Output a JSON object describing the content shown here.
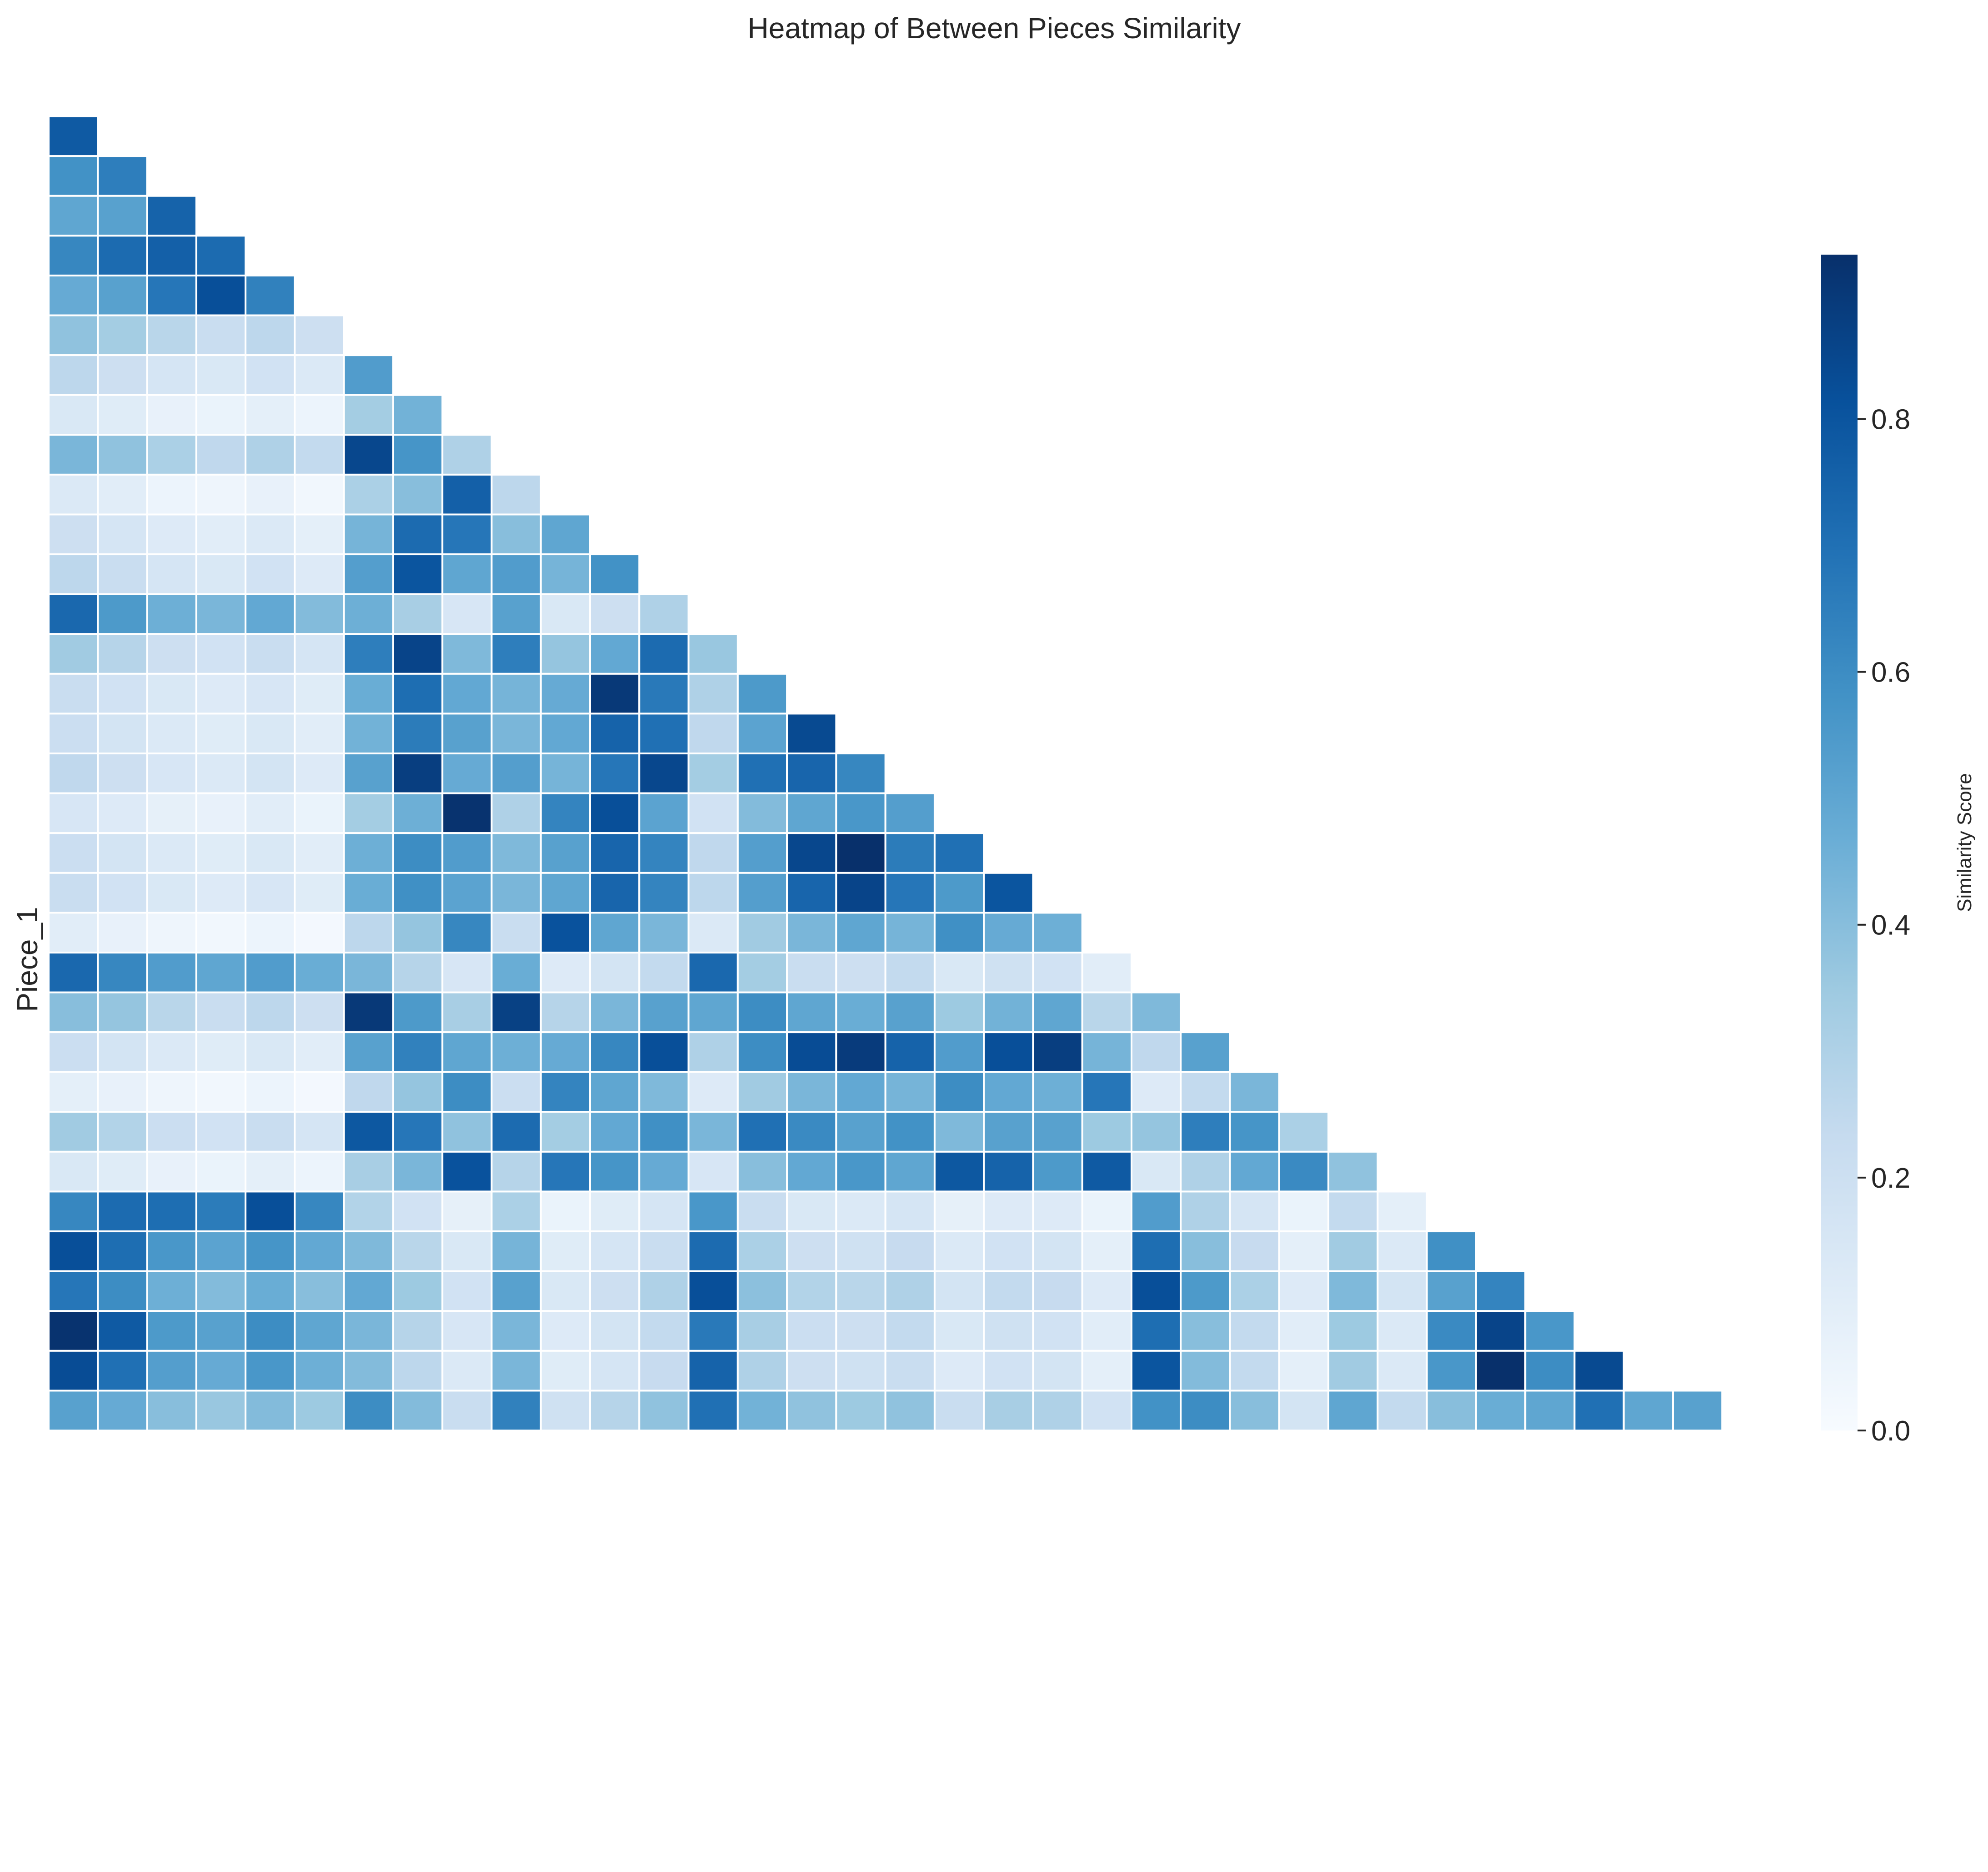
{
  "chart_data": {
    "type": "heatmap",
    "title": "Heatmap of Between Pieces Similarity",
    "ylabel": "Piece_1",
    "xlabel": "",
    "colorbar": {
      "label": "Similarity Score",
      "range": [
        0.0,
        0.93
      ],
      "ticks": [
        0.0,
        0.2,
        0.4,
        0.6,
        0.8
      ],
      "tick_labels": [
        "0.0",
        "0.2",
        "0.4",
        "0.6",
        "0.8"
      ],
      "colormap": "Blues"
    },
    "mask": "upper triangle including diagonal (row i shows columns 0..i-1)",
    "grid": false,
    "cell_border_color": "#ffffff",
    "rows": [
      [
        0.78
      ],
      [
        0.58,
        0.65
      ],
      [
        0.5,
        0.52,
        0.75
      ],
      [
        0.62,
        0.72,
        0.76,
        0.72
      ],
      [
        0.48,
        0.52,
        0.68,
        0.82,
        0.64
      ],
      [
        0.38,
        0.33,
        0.27,
        0.22,
        0.26,
        0.2
      ],
      [
        0.26,
        0.2,
        0.16,
        0.14,
        0.18,
        0.13,
        0.54
      ],
      [
        0.14,
        0.11,
        0.07,
        0.06,
        0.09,
        0.05,
        0.33,
        0.45
      ],
      [
        0.43,
        0.38,
        0.31,
        0.25,
        0.3,
        0.24,
        0.85,
        0.57,
        0.3
      ],
      [
        0.13,
        0.1,
        0.05,
        0.04,
        0.07,
        0.03,
        0.31,
        0.4,
        0.76,
        0.26
      ],
      [
        0.2,
        0.16,
        0.12,
        0.1,
        0.13,
        0.09,
        0.44,
        0.72,
        0.68,
        0.4,
        0.5
      ],
      [
        0.26,
        0.22,
        0.16,
        0.14,
        0.18,
        0.12,
        0.53,
        0.8,
        0.5,
        0.54,
        0.44,
        0.58
      ],
      [
        0.73,
        0.55,
        0.46,
        0.43,
        0.49,
        0.41,
        0.46,
        0.32,
        0.15,
        0.52,
        0.14,
        0.2,
        0.3
      ],
      [
        0.34,
        0.28,
        0.2,
        0.18,
        0.22,
        0.16,
        0.65,
        0.86,
        0.42,
        0.65,
        0.37,
        0.49,
        0.72,
        0.36
      ],
      [
        0.22,
        0.18,
        0.14,
        0.12,
        0.15,
        0.11,
        0.47,
        0.71,
        0.49,
        0.44,
        0.48,
        0.9,
        0.67,
        0.3,
        0.55
      ],
      [
        0.21,
        0.17,
        0.13,
        0.11,
        0.14,
        0.1,
        0.45,
        0.66,
        0.52,
        0.43,
        0.49,
        0.75,
        0.7,
        0.25,
        0.51,
        0.84
      ],
      [
        0.25,
        0.2,
        0.15,
        0.13,
        0.17,
        0.12,
        0.52,
        0.88,
        0.48,
        0.53,
        0.44,
        0.68,
        0.85,
        0.33,
        0.7,
        0.74,
        0.62
      ],
      [
        0.15,
        0.12,
        0.08,
        0.07,
        0.1,
        0.06,
        0.33,
        0.46,
        0.92,
        0.3,
        0.63,
        0.82,
        0.51,
        0.18,
        0.41,
        0.5,
        0.56,
        0.53
      ],
      [
        0.21,
        0.17,
        0.13,
        0.11,
        0.14,
        0.1,
        0.46,
        0.6,
        0.54,
        0.42,
        0.52,
        0.74,
        0.63,
        0.25,
        0.53,
        0.85,
        0.93,
        0.66,
        0.7
      ],
      [
        0.22,
        0.18,
        0.14,
        0.12,
        0.15,
        0.11,
        0.47,
        0.59,
        0.51,
        0.43,
        0.5,
        0.74,
        0.63,
        0.26,
        0.53,
        0.74,
        0.86,
        0.68,
        0.55,
        0.8
      ],
      [
        0.1,
        0.07,
        0.04,
        0.03,
        0.05,
        0.02,
        0.26,
        0.37,
        0.62,
        0.22,
        0.81,
        0.5,
        0.43,
        0.13,
        0.34,
        0.43,
        0.5,
        0.44,
        0.59,
        0.48,
        0.46
      ],
      [
        0.73,
        0.62,
        0.54,
        0.5,
        0.54,
        0.47,
        0.43,
        0.28,
        0.15,
        0.47,
        0.12,
        0.17,
        0.24,
        0.73,
        0.33,
        0.22,
        0.2,
        0.24,
        0.14,
        0.19,
        0.18,
        0.1
      ],
      [
        0.4,
        0.37,
        0.27,
        0.22,
        0.26,
        0.2,
        0.9,
        0.55,
        0.32,
        0.87,
        0.28,
        0.43,
        0.52,
        0.5,
        0.6,
        0.5,
        0.47,
        0.52,
        0.35,
        0.45,
        0.5,
        0.27,
        0.42
      ],
      [
        0.21,
        0.17,
        0.13,
        0.11,
        0.14,
        0.1,
        0.52,
        0.64,
        0.5,
        0.46,
        0.48,
        0.62,
        0.82,
        0.3,
        0.6,
        0.83,
        0.89,
        0.75,
        0.54,
        0.82,
        0.88,
        0.44,
        0.25,
        0.52
      ],
      [
        0.09,
        0.07,
        0.04,
        0.03,
        0.05,
        0.02,
        0.25,
        0.37,
        0.6,
        0.21,
        0.63,
        0.5,
        0.42,
        0.12,
        0.34,
        0.43,
        0.49,
        0.44,
        0.6,
        0.49,
        0.46,
        0.68,
        0.12,
        0.24,
        0.43
      ],
      [
        0.34,
        0.29,
        0.21,
        0.18,
        0.22,
        0.16,
        0.79,
        0.68,
        0.38,
        0.72,
        0.33,
        0.49,
        0.59,
        0.43,
        0.7,
        0.61,
        0.52,
        0.58,
        0.42,
        0.52,
        0.52,
        0.35,
        0.37,
        0.65,
        0.57,
        0.31
      ],
      [
        0.14,
        0.11,
        0.07,
        0.06,
        0.09,
        0.05,
        0.32,
        0.43,
        0.81,
        0.28,
        0.68,
        0.57,
        0.48,
        0.15,
        0.4,
        0.49,
        0.56,
        0.5,
        0.79,
        0.75,
        0.55,
        0.78,
        0.14,
        0.3,
        0.49,
        0.61,
        0.38
      ],
      [
        0.62,
        0.72,
        0.71,
        0.66,
        0.82,
        0.62,
        0.29,
        0.18,
        0.08,
        0.31,
        0.06,
        0.11,
        0.16,
        0.56,
        0.22,
        0.14,
        0.13,
        0.16,
        0.08,
        0.12,
        0.12,
        0.06,
        0.54,
        0.3,
        0.16,
        0.06,
        0.24,
        0.09
      ],
      [
        0.82,
        0.71,
        0.56,
        0.51,
        0.57,
        0.49,
        0.42,
        0.27,
        0.14,
        0.44,
        0.11,
        0.16,
        0.22,
        0.72,
        0.31,
        0.2,
        0.19,
        0.23,
        0.13,
        0.18,
        0.17,
        0.09,
        0.71,
        0.4,
        0.23,
        0.09,
        0.34,
        0.13,
        0.59
      ],
      [
        0.68,
        0.6,
        0.46,
        0.41,
        0.47,
        0.4,
        0.49,
        0.35,
        0.18,
        0.52,
        0.14,
        0.2,
        0.3,
        0.82,
        0.39,
        0.29,
        0.27,
        0.3,
        0.17,
        0.24,
        0.23,
        0.12,
        0.82,
        0.55,
        0.31,
        0.12,
        0.42,
        0.17,
        0.52,
        0.63
      ],
      [
        0.92,
        0.78,
        0.55,
        0.52,
        0.6,
        0.5,
        0.43,
        0.28,
        0.15,
        0.43,
        0.12,
        0.17,
        0.24,
        0.67,
        0.32,
        0.21,
        0.2,
        0.24,
        0.14,
        0.19,
        0.18,
        0.1,
        0.71,
        0.4,
        0.24,
        0.1,
        0.35,
        0.13,
        0.61,
        0.86,
        0.56
      ],
      [
        0.83,
        0.7,
        0.53,
        0.48,
        0.56,
        0.46,
        0.41,
        0.26,
        0.13,
        0.43,
        0.11,
        0.16,
        0.23,
        0.75,
        0.3,
        0.2,
        0.19,
        0.22,
        0.12,
        0.18,
        0.17,
        0.09,
        0.8,
        0.41,
        0.24,
        0.09,
        0.34,
        0.13,
        0.56,
        0.93,
        0.6,
        0.84
      ],
      [
        0.52,
        0.48,
        0.4,
        0.36,
        0.41,
        0.35,
        0.6,
        0.41,
        0.22,
        0.64,
        0.19,
        0.28,
        0.38,
        0.7,
        0.45,
        0.38,
        0.35,
        0.38,
        0.22,
        0.32,
        0.3,
        0.18,
        0.58,
        0.6,
        0.4,
        0.17,
        0.5,
        0.24,
        0.4,
        0.47,
        0.5,
        0.7,
        0.5,
        0.52
      ]
    ]
  }
}
